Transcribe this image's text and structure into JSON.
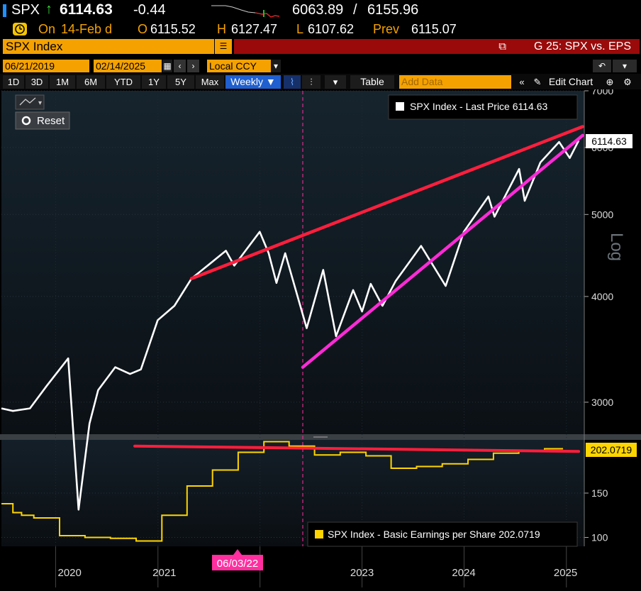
{
  "header": {
    "ticker": "SPX",
    "arrow": "↑",
    "last": "6114.63",
    "change": "-0.44",
    "range_low": "6063.89",
    "range_sep": "/",
    "range_high": "6155.96",
    "on_label": "On",
    "date_label": "14-Feb d",
    "open_label": "O",
    "open": "6115.52",
    "high_label": "H",
    "high": "6127.47",
    "low_label": "L",
    "low": "6107.62",
    "prev_label": "Prev",
    "prev": "6115.07"
  },
  "security_bar": {
    "security": "SPX Index",
    "graph_title": "G 25: SPX vs. EPS"
  },
  "controls": {
    "start_date": "06/21/2019",
    "end_date": "02/14/2025",
    "currency": "Local CCY",
    "add_data_placeholder": "Add Data"
  },
  "toolbar": {
    "ranges": [
      "1D",
      "3D",
      "1M",
      "6M",
      "YTD",
      "1Y",
      "5Y",
      "Max"
    ],
    "frequency": "Weekly ▼",
    "table": "Table",
    "edit_chart": "Edit Chart"
  },
  "reset_label": "Reset",
  "colors": {
    "accent_orange": "#f5a200",
    "price_line": "#ffffff",
    "eps_line": "#ffd500",
    "upper_trend": "#ff1e3c",
    "lower_trend": "#ff2bd6",
    "crosshair": "#ff2fa0"
  },
  "chart_data": [
    {
      "type": "line",
      "legend": "SPX Index - Last Price 6114.63",
      "last_value_tag": "6114.63",
      "scale_label": "Log",
      "y_scale": "log",
      "ylim": [
        2750,
        7000
      ],
      "y_ticks": [
        3000,
        4000,
        5000,
        6000,
        7000
      ],
      "x_range": [
        "2019-06-21",
        "2025-02-14"
      ],
      "series": [
        {
          "x": [
            "2019-06-21",
            "2019-08-01",
            "2019-10-01",
            "2019-12-01",
            "2020-02-15",
            "2020-03-23",
            "2020-05-01",
            "2020-06-01",
            "2020-08-01",
            "2020-09-23",
            "2020-11-01",
            "2020-12-31",
            "2021-03-01",
            "2021-05-01",
            "2021-07-01",
            "2021-09-01",
            "2021-10-01",
            "2021-12-31",
            "2022-02-01",
            "2022-03-01",
            "2022-04-01",
            "2022-06-17",
            "2022-08-15",
            "2022-09-30",
            "2022-11-30",
            "2023-01-01",
            "2023-02-01",
            "2023-03-15",
            "2023-05-01",
            "2023-07-31",
            "2023-10-27",
            "2023-12-31",
            "2024-03-28",
            "2024-04-19",
            "2024-07-16",
            "2024-08-05",
            "2024-09-30",
            "2024-12-06",
            "2025-01-13",
            "2025-02-14"
          ],
          "y": [
            2950,
            2930,
            2950,
            3140,
            3380,
            2240,
            2830,
            3100,
            3300,
            3240,
            3280,
            3750,
            3900,
            4200,
            4360,
            4530,
            4350,
            4770,
            4500,
            4150,
            4500,
            3670,
            4300,
            3590,
            4070,
            3840,
            4140,
            3900,
            4170,
            4590,
            4117,
            4770,
            5250,
            4970,
            5660,
            5190,
            5760,
            6090,
            5830,
            6114.63
          ]
        }
      ],
      "trendlines": [
        {
          "name": "upper",
          "from": [
            "2021-05-01",
            4200
          ],
          "to": [
            "2025-02-28",
            6350
          ]
        },
        {
          "name": "lower",
          "from": [
            "2022-06-03",
            3300
          ],
          "to": [
            "2025-02-28",
            6200
          ]
        }
      ],
      "marker_date": "2022-06-03"
    },
    {
      "type": "line",
      "legend": "SPX Index - Basic Earnings per Share 202.0719",
      "last_value_tag": "202.0719",
      "ylim": [
        90,
        210
      ],
      "y_ticks": [
        100,
        150
      ],
      "series": [
        {
          "x": [
            "2019-06-21",
            "2019-08-01",
            "2019-09-01",
            "2019-10-15",
            "2020-01-15",
            "2020-04-15",
            "2020-07-15",
            "2020-10-15",
            "2021-01-15",
            "2021-04-15",
            "2021-07-15",
            "2021-10-15",
            "2022-01-15",
            "2022-04-15",
            "2022-07-15",
            "2022-10-15",
            "2023-01-15",
            "2023-04-15",
            "2023-07-15",
            "2023-10-15",
            "2024-01-15",
            "2024-04-15",
            "2024-07-15",
            "2024-10-15"
          ],
          "y": [
            138,
            128,
            125,
            122,
            102,
            100,
            99,
            96,
            125,
            158,
            176,
            196,
            208,
            203,
            193,
            196,
            192,
            178,
            180,
            183,
            188,
            195,
            198,
            200
          ]
        }
      ],
      "trendline": {
        "from": [
          "2020-10-10",
          203
        ],
        "to": [
          "2025-02-14",
          197
        ]
      }
    }
  ],
  "x_axis": {
    "ticks": [
      "2020",
      "2021",
      "2023",
      "2024",
      "2025"
    ],
    "tick_dates": [
      "2020-02-20",
      "2021-01-24",
      "2023-01-01",
      "2023-12-31",
      "2024-12-29"
    ],
    "marker_label": "06/03/22"
  }
}
